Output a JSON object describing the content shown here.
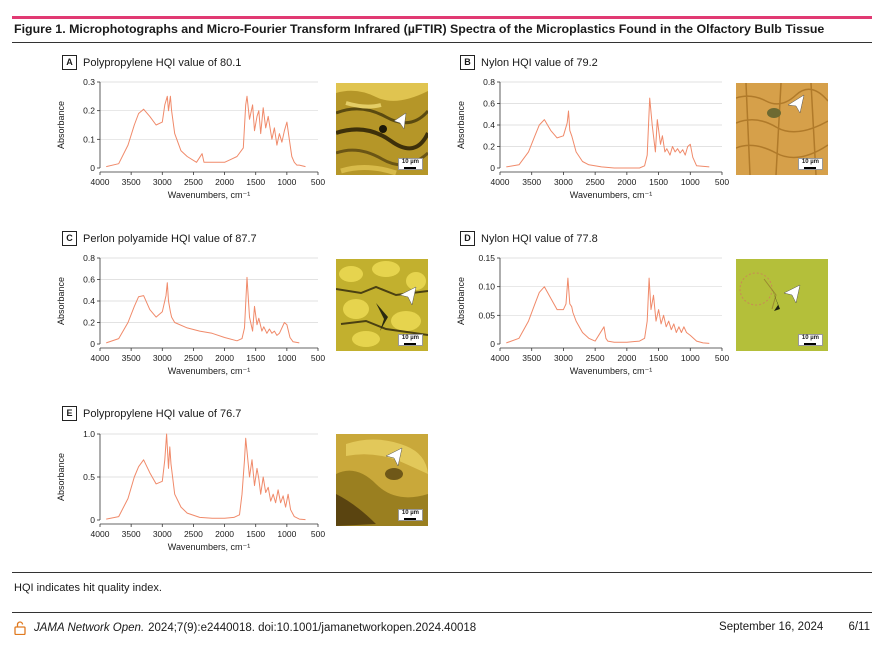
{
  "figure": {
    "title": "Figure 1. Microphotographs and Micro-Fourier Transform Infrared (µFTIR) Spectra of the Microplastics Found in the Olfactory Bulb Tissue",
    "footnote": "HQI indicates hit quality index.",
    "citation_journal": "JAMA Network Open.",
    "citation_text": "2024;7(9):e2440018. doi:10.1001/jamanetworkopen.2024.40018",
    "date": "September 16, 2024",
    "page": "6/11",
    "accent_color": "#e13a73",
    "spectrum_color": "#f08a6a"
  },
  "chart_data": [
    {
      "panel": "A",
      "type": "line",
      "title": "Polypropylene HQI value of 80.1",
      "xlabel": "Wavenumbers, cm⁻¹",
      "ylabel": "Absorbance",
      "xlim": [
        4000,
        500
      ],
      "ylim": [
        0,
        0.3
      ],
      "xticks": [
        "4000",
        "3500",
        "3000",
        "2500",
        "2000",
        "1500",
        "1000",
        "500"
      ],
      "yticks": [
        "0",
        "0.1",
        "0.2",
        "0.3"
      ],
      "grid": true,
      "series": [
        {
          "x": [
            3900,
            3700,
            3550,
            3450,
            3380,
            3300,
            3200,
            3100,
            3000,
            2960,
            2920,
            2900,
            2870,
            2850,
            2800,
            2700,
            2600,
            2450,
            2360,
            2330,
            2200,
            2000,
            1900,
            1800,
            1700,
            1660,
            1640,
            1600,
            1550,
            1520,
            1480,
            1450,
            1420,
            1380,
            1340,
            1300,
            1240,
            1200,
            1160,
            1120,
            1080,
            1040,
            1000,
            960,
            920,
            880,
            840,
            800,
            700
          ],
          "y": [
            0.005,
            0.015,
            0.08,
            0.15,
            0.19,
            0.205,
            0.18,
            0.15,
            0.16,
            0.22,
            0.25,
            0.2,
            0.25,
            0.2,
            0.12,
            0.06,
            0.04,
            0.02,
            0.05,
            0.02,
            0.02,
            0.02,
            0.03,
            0.04,
            0.07,
            0.22,
            0.25,
            0.17,
            0.22,
            0.13,
            0.18,
            0.2,
            0.12,
            0.21,
            0.14,
            0.18,
            0.1,
            0.14,
            0.08,
            0.12,
            0.09,
            0.13,
            0.16,
            0.1,
            0.04,
            0.02,
            0.01,
            0.01,
            0.005
          ]
        }
      ]
    },
    {
      "panel": "B",
      "type": "line",
      "title": "Nylon HQI value of 79.2",
      "xlabel": "Wavenumbers, cm⁻¹",
      "ylabel": "Absorbance",
      "xlim": [
        4000,
        500
      ],
      "ylim": [
        0,
        0.8
      ],
      "xticks": [
        "4000",
        "3500",
        "3000",
        "2500",
        "2000",
        "1500",
        "1000",
        "500"
      ],
      "yticks": [
        "0",
        "0.2",
        "0.4",
        "0.6",
        "0.8"
      ],
      "grid": true,
      "series": [
        {
          "x": [
            3900,
            3700,
            3550,
            3450,
            3380,
            3300,
            3200,
            3100,
            3000,
            2940,
            2920,
            2900,
            2870,
            2860,
            2800,
            2700,
            2600,
            2400,
            2200,
            2000,
            1800,
            1720,
            1680,
            1640,
            1600,
            1550,
            1520,
            1470,
            1440,
            1400,
            1370,
            1320,
            1280,
            1240,
            1200,
            1160,
            1120,
            1080,
            1040,
            1000,
            960,
            900,
            700
          ],
          "y": [
            0.01,
            0.03,
            0.15,
            0.3,
            0.4,
            0.45,
            0.35,
            0.28,
            0.3,
            0.42,
            0.53,
            0.35,
            0.3,
            0.28,
            0.15,
            0.06,
            0.03,
            0.01,
            0.0,
            0.0,
            0.0,
            0.02,
            0.12,
            0.65,
            0.4,
            0.15,
            0.45,
            0.22,
            0.3,
            0.15,
            0.18,
            0.12,
            0.2,
            0.15,
            0.18,
            0.14,
            0.17,
            0.12,
            0.2,
            0.22,
            0.1,
            0.02,
            0.01
          ]
        }
      ]
    },
    {
      "panel": "C",
      "type": "line",
      "title": "Perlon polyamide HQI value of 87.7",
      "xlabel": "Wavenumbers, cm⁻¹",
      "ylabel": "Absorbance",
      "xlim": [
        4000,
        500
      ],
      "ylim": [
        0,
        0.8
      ],
      "xticks": [
        "4000",
        "3500",
        "3000",
        "2500",
        "2000",
        "1500",
        "1000",
        "500"
      ],
      "yticks": [
        "0",
        "0.2",
        "0.4",
        "0.6",
        "0.8"
      ],
      "grid": true,
      "series": [
        {
          "x": [
            3900,
            3700,
            3550,
            3450,
            3380,
            3300,
            3200,
            3100,
            3000,
            2940,
            2920,
            2900,
            2870,
            2850,
            2800,
            2600,
            2400,
            2200,
            2000,
            1800,
            1720,
            1680,
            1640,
            1600,
            1550,
            1520,
            1480,
            1450,
            1400,
            1370,
            1320,
            1280,
            1240,
            1200,
            1160,
            1120,
            1080,
            1040,
            1000,
            950,
            900,
            800
          ],
          "y": [
            0.01,
            0.05,
            0.2,
            0.35,
            0.44,
            0.45,
            0.32,
            0.25,
            0.3,
            0.45,
            0.57,
            0.4,
            0.3,
            0.25,
            0.2,
            0.15,
            0.12,
            0.1,
            0.06,
            0.03,
            0.05,
            0.15,
            0.62,
            0.25,
            0.12,
            0.35,
            0.18,
            0.24,
            0.12,
            0.16,
            0.1,
            0.14,
            0.1,
            0.12,
            0.08,
            0.1,
            0.15,
            0.2,
            0.18,
            0.06,
            0.02,
            0.01
          ]
        }
      ]
    },
    {
      "panel": "D",
      "type": "line",
      "title": "Nylon HQI value of 77.8",
      "xlabel": "Wavenumbers, cm⁻¹",
      "ylabel": "Absorbance",
      "xlim": [
        4000,
        500
      ],
      "ylim": [
        0,
        0.15
      ],
      "xticks": [
        "4000",
        "3500",
        "3000",
        "2500",
        "2000",
        "1500",
        "1000",
        "500"
      ],
      "yticks": [
        "0",
        "0.05",
        "0.10",
        "0.15"
      ],
      "grid": true,
      "series": [
        {
          "x": [
            3900,
            3700,
            3550,
            3450,
            3380,
            3300,
            3200,
            3100,
            3000,
            2960,
            2930,
            2900,
            2870,
            2850,
            2800,
            2700,
            2600,
            2500,
            2360,
            2330,
            2300,
            2200,
            2000,
            1800,
            1720,
            1680,
            1650,
            1620,
            1580,
            1540,
            1500,
            1460,
            1420,
            1380,
            1340,
            1300,
            1260,
            1220,
            1180,
            1140,
            1100,
            1060,
            1000,
            900,
            800,
            700
          ],
          "y": [
            0.002,
            0.01,
            0.04,
            0.07,
            0.09,
            0.1,
            0.08,
            0.06,
            0.06,
            0.07,
            0.115,
            0.07,
            0.065,
            0.055,
            0.04,
            0.02,
            0.01,
            0.005,
            0.03,
            0.01,
            0.005,
            0.003,
            0.003,
            0.005,
            0.01,
            0.04,
            0.115,
            0.06,
            0.085,
            0.04,
            0.06,
            0.035,
            0.05,
            0.03,
            0.04,
            0.025,
            0.035,
            0.02,
            0.03,
            0.02,
            0.03,
            0.02,
            0.015,
            0.005,
            0.002,
            0.001
          ]
        }
      ]
    },
    {
      "panel": "E",
      "type": "line",
      "title": "Polypropylene HQI value of 76.7",
      "xlabel": "Wavenumbers, cm⁻¹",
      "ylabel": "Absorbance",
      "xlim": [
        4000,
        500
      ],
      "ylim": [
        0,
        1.0
      ],
      "xticks": [
        "4000",
        "3500",
        "3000",
        "2500",
        "2000",
        "1500",
        "1000",
        "500"
      ],
      "yticks": [
        "0",
        "0.5",
        "1.0"
      ],
      "grid": true,
      "series": [
        {
          "x": [
            3900,
            3700,
            3550,
            3450,
            3380,
            3300,
            3200,
            3100,
            3000,
            2960,
            2930,
            2900,
            2880,
            2860,
            2800,
            2700,
            2600,
            2400,
            2200,
            2000,
            1850,
            1760,
            1720,
            1680,
            1660,
            1640,
            1600,
            1560,
            1520,
            1480,
            1450,
            1420,
            1380,
            1340,
            1300,
            1260,
            1220,
            1180,
            1140,
            1100,
            1060,
            1020,
            980,
            940,
            880,
            800,
            700
          ],
          "y": [
            0.01,
            0.04,
            0.25,
            0.5,
            0.62,
            0.7,
            0.55,
            0.42,
            0.45,
            0.7,
            1.0,
            0.6,
            0.85,
            0.65,
            0.3,
            0.15,
            0.08,
            0.03,
            0.02,
            0.02,
            0.03,
            0.06,
            0.3,
            0.7,
            0.95,
            0.8,
            0.5,
            0.7,
            0.4,
            0.6,
            0.48,
            0.3,
            0.5,
            0.32,
            0.38,
            0.22,
            0.3,
            0.2,
            0.35,
            0.2,
            0.28,
            0.15,
            0.3,
            0.12,
            0.04,
            0.01,
            0.005
          ]
        }
      ]
    }
  ]
}
